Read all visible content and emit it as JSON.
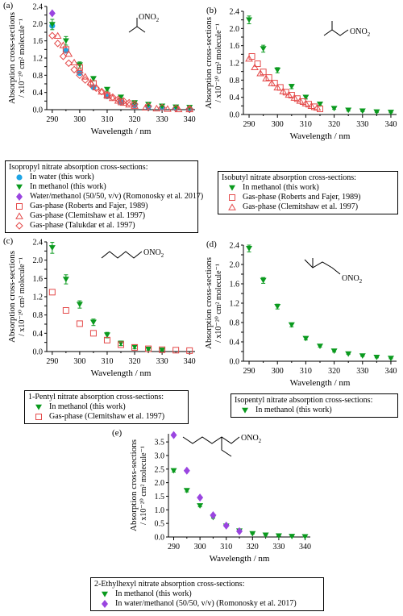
{
  "colors": {
    "green": "#0a9a1e",
    "blue": "#1ea5e6",
    "purple": "#9a45e0",
    "red": "#e44a4a"
  },
  "chart_data": [
    {
      "id": "a",
      "letter": "(a)",
      "type": "scatter",
      "xlabel": "Wavelength / nm",
      "ylabel": [
        "Absorption cross-sections",
        "/ x10⁻²⁰ cm² molecule⁻¹"
      ],
      "xlim": [
        288,
        342
      ],
      "ylim": [
        0,
        2.4
      ],
      "xticks": [
        290,
        300,
        310,
        320,
        330,
        340
      ],
      "yticks": [
        0,
        0.2,
        0.4,
        0.6,
        0.8,
        1.0,
        1.2,
        1.4,
        1.6,
        1.8,
        2.0,
        2.2,
        2.4
      ],
      "yticklabels": [
        "0.0",
        "",
        "0.4",
        "",
        "0.8",
        "",
        "1.2",
        "",
        "1.6",
        "",
        "2.0",
        "",
        "2.4"
      ],
      "legend": {
        "title": "Isopropyl nitrate absorption cross-sections:"
      },
      "series": [
        {
          "name": "In water (this work)",
          "marker": "circle",
          "color": "blue",
          "x": [
            290,
            295,
            300,
            305,
            310,
            315,
            320,
            325,
            330,
            335,
            340
          ],
          "y": [
            1.95,
            1.37,
            0.85,
            0.52,
            0.31,
            0.18,
            0.1,
            0.06,
            0.04,
            0.03,
            0.02
          ]
        },
        {
          "name": "In methanol (this work)",
          "marker": "triangle-down",
          "color": "green",
          "errors": true,
          "x": [
            290,
            295,
            300,
            305,
            310,
            315,
            320,
            325,
            330,
            335,
            340
          ],
          "y": [
            1.98,
            1.6,
            1.04,
            0.72,
            0.47,
            0.29,
            0.16,
            0.12,
            0.08,
            0.06,
            0.05
          ],
          "err": [
            0.12,
            0.1,
            0.07,
            0.05,
            0.04,
            0.03,
            0.02,
            0.02,
            0.01,
            0.01,
            0.01
          ]
        },
        {
          "name": "Water/methanol (50/50, v/v) (Romonosky et al. 2017)",
          "marker": "diamond",
          "color": "purple",
          "x": [
            290
          ],
          "y": [
            2.24
          ]
        },
        {
          "name": "Gas-phase (Roberts and Fajer, 1989)",
          "marker": "square",
          "color": "red",
          "x": [
            295,
            300,
            305,
            310,
            315
          ],
          "y": [
            1.4,
            0.98,
            0.61,
            0.33,
            0.18
          ]
        },
        {
          "name": "Gas-phase (Clemitshaw et al. 1997)",
          "marker": "triangle-up",
          "color": "red",
          "x": [
            292,
            294,
            296,
            298,
            300,
            302,
            304,
            306,
            308,
            310,
            312,
            314,
            316,
            318,
            320,
            324,
            328,
            332,
            336,
            340
          ],
          "y": [
            1.72,
            1.5,
            1.3,
            1.1,
            0.92,
            0.77,
            0.64,
            0.52,
            0.42,
            0.34,
            0.27,
            0.21,
            0.16,
            0.12,
            0.09,
            0.05,
            0.03,
            0.02,
            0.01,
            0.01
          ]
        },
        {
          "name": "Gas-phase (Talukdar et al. 1997)",
          "marker": "diamond-open",
          "color": "red",
          "x": [
            290,
            292,
            294,
            296,
            298,
            300,
            302,
            304,
            306,
            308,
            310,
            312,
            314,
            316,
            318,
            320,
            325,
            330,
            335,
            340
          ],
          "y": [
            1.72,
            1.54,
            1.24,
            1.08,
            0.93,
            0.8,
            0.69,
            0.59,
            0.5,
            0.42,
            0.35,
            0.29,
            0.24,
            0.2,
            0.16,
            0.13,
            0.08,
            0.05,
            0.03,
            0.02
          ]
        }
      ]
    },
    {
      "id": "b",
      "letter": "(b)",
      "type": "scatter",
      "xlabel": "Wavelength / nm",
      "ylabel": [
        "Absorption cross-sections",
        "/ x10⁻²⁰ cm² molecule⁻¹"
      ],
      "xlim": [
        288,
        342
      ],
      "ylim": [
        0,
        2.4
      ],
      "xticks": [
        290,
        300,
        310,
        320,
        330,
        340
      ],
      "yticks": [
        0,
        0.2,
        0.4,
        0.6,
        0.8,
        1.0,
        1.2,
        1.4,
        1.6,
        1.8,
        2.0,
        2.2,
        2.4
      ],
      "yticklabels": [
        "0.0",
        "",
        "0.4",
        "",
        "0.8",
        "",
        "1.2",
        "",
        "1.6",
        "",
        "2.0",
        "",
        "2.4"
      ],
      "legend": {
        "title": "Isobutyl nitrate absorption cross-sections:"
      },
      "series": [
        {
          "name": "In methanol (this work)",
          "marker": "triangle-down",
          "color": "green",
          "errors": true,
          "x": [
            290,
            295,
            300,
            305,
            310,
            315,
            320,
            325,
            330,
            335,
            340
          ],
          "y": [
            2.2,
            1.53,
            1.03,
            0.65,
            0.4,
            0.24,
            0.14,
            0.1,
            0.08,
            0.06,
            0.05
          ],
          "err": [
            0.09,
            0.08,
            0.06,
            0.05,
            0.04,
            0.03,
            0.02,
            0.02,
            0.01,
            0.01,
            0.01
          ]
        },
        {
          "name": "Gas-phase (Roberts and Fajer, 1989)",
          "marker": "square",
          "color": "red",
          "x": [
            291,
            293,
            295,
            297,
            299,
            301,
            303,
            305,
            307,
            309,
            311,
            313,
            315
          ],
          "y": [
            1.35,
            1.18,
            0.99,
            0.86,
            0.73,
            0.63,
            0.52,
            0.45,
            0.37,
            0.3,
            0.24,
            0.18,
            0.13
          ]
        },
        {
          "name": "Gas-phase (Clemitshaw et al. 1997)",
          "marker": "triangle-up",
          "color": "red",
          "x": [
            290,
            292,
            294,
            296,
            298,
            300,
            302,
            304,
            306,
            308,
            310,
            312,
            314
          ],
          "y": [
            1.3,
            1.1,
            0.96,
            0.84,
            0.73,
            0.63,
            0.54,
            0.46,
            0.39,
            0.32,
            0.26,
            0.2,
            0.16
          ]
        }
      ]
    },
    {
      "id": "c",
      "letter": "(c)",
      "type": "scatter",
      "xlabel": "Wavelength / nm",
      "ylabel": [
        "Absorption cross-sections",
        "/ x10⁻²⁰ cm² molecule⁻¹"
      ],
      "xlim": [
        288,
        342
      ],
      "ylim": [
        0,
        2.4
      ],
      "xticks": [
        290,
        300,
        310,
        320,
        330,
        340
      ],
      "yticks": [
        0,
        0.2,
        0.4,
        0.6,
        0.8,
        1.0,
        1.2,
        1.4,
        1.6,
        1.8,
        2.0,
        2.2,
        2.4
      ],
      "yticklabels": [
        "0.0",
        "",
        "0.4",
        "",
        "0.8",
        "",
        "1.2",
        "",
        "1.6",
        "",
        "2.0",
        "",
        "2.4"
      ],
      "legend": {
        "title": "1-Pentyl nitrate absorption cross-sections:"
      },
      "series": [
        {
          "name": "In methanol (this work)",
          "marker": "triangle-down",
          "color": "green",
          "errors": true,
          "x": [
            290,
            295,
            300,
            305,
            310,
            315,
            320,
            325,
            330
          ],
          "y": [
            2.27,
            1.58,
            1.03,
            0.64,
            0.36,
            0.18,
            0.1,
            0.05,
            0.03
          ],
          "err": [
            0.12,
            0.1,
            0.08,
            0.07,
            0.06,
            0.05,
            0.04,
            0.02,
            0.01
          ]
        },
        {
          "name": "Gas-phase (Clemitshaw et al. 1997)",
          "marker": "square",
          "color": "red",
          "x": [
            290,
            295,
            300,
            305,
            310,
            315,
            320,
            325,
            330,
            335,
            340
          ],
          "y": [
            1.3,
            0.9,
            0.61,
            0.4,
            0.25,
            0.15,
            0.09,
            0.06,
            0.04,
            0.03,
            0.02
          ]
        }
      ]
    },
    {
      "id": "d",
      "letter": "(d)",
      "type": "scatter",
      "xlabel": "Wavelength / nm",
      "ylabel": [
        "Absorption cross-sections",
        "/ x10⁻²⁰ cm² molecule⁻¹"
      ],
      "xlim": [
        288,
        342
      ],
      "ylim": [
        0,
        2.4
      ],
      "xticks": [
        290,
        300,
        310,
        320,
        330,
        340
      ],
      "yticks": [
        0,
        0.2,
        0.4,
        0.6,
        0.8,
        1.0,
        1.2,
        1.4,
        1.6,
        1.8,
        2.0,
        2.2,
        2.4
      ],
      "yticklabels": [
        "0.0",
        "",
        "0.4",
        "",
        "0.8",
        "",
        "1.2",
        "",
        "1.6",
        "",
        "2.0",
        "",
        "2.4"
      ],
      "legend": {
        "title": "Isopentyl nitrate absorption cross-sections:"
      },
      "series": [
        {
          "name": "In methanol (this work)",
          "marker": "triangle-down",
          "color": "green",
          "errors": true,
          "x": [
            290,
            295,
            300,
            305,
            310,
            315,
            320,
            325,
            330,
            335,
            340
          ],
          "y": [
            2.33,
            1.67,
            1.13,
            0.75,
            0.47,
            0.31,
            0.21,
            0.15,
            0.11,
            0.08,
            0.06
          ],
          "err": [
            0.07,
            0.06,
            0.05,
            0.04,
            0.03,
            0.02,
            0.02,
            0.01,
            0.01,
            0.01,
            0.01
          ]
        }
      ]
    },
    {
      "id": "e",
      "letter": "(e)",
      "type": "scatter",
      "xlabel": "Wavelength / nm",
      "ylabel": [
        "Absorption cross-sections",
        "/ x10⁻²⁰ cm² molecule⁻¹"
      ],
      "xlim": [
        288,
        342
      ],
      "ylim": [
        0,
        3.8
      ],
      "xticks": [
        290,
        300,
        310,
        320,
        330,
        340
      ],
      "yticks": [
        0,
        0.5,
        1.0,
        1.5,
        2.0,
        2.5,
        3.0,
        3.5
      ],
      "yticklabels": [
        "0.0",
        "0.5",
        "1.0",
        "1.5",
        "2.0",
        "2.5",
        "3.0",
        "3.5"
      ],
      "legend": {
        "title": "2-Ethylhexyl nitrate absorption cross-sections:"
      },
      "series": [
        {
          "name": "In methanol (this work)",
          "marker": "triangle-down",
          "color": "green",
          "errors": true,
          "x": [
            290,
            295,
            300,
            305,
            310,
            315,
            320,
            325,
            330,
            335,
            340
          ],
          "y": [
            2.44,
            1.71,
            1.15,
            0.72,
            0.4,
            0.22,
            0.12,
            0.07,
            0.04,
            0.02,
            0.01
          ],
          "err": [
            0.05,
            0.05,
            0.04,
            0.03,
            0.02,
            0.02,
            0.01,
            0.01,
            0.01,
            0.01,
            0.01
          ]
        },
        {
          "name": "In water/methanol (50/50, v/v) (Romonosky et al. 2017)",
          "marker": "diamond",
          "color": "purple",
          "x": [
            290,
            295,
            300,
            305,
            310,
            315
          ],
          "y": [
            3.75,
            2.44,
            1.45,
            0.8,
            0.42,
            0.21
          ]
        }
      ]
    }
  ],
  "structures": {
    "a": {
      "label": "ONO2"
    },
    "b": {
      "label": "ONO2"
    },
    "c": {
      "label": "ONO2"
    },
    "d": {
      "label": "ONO2"
    },
    "e": {
      "label": "ONO2"
    }
  }
}
